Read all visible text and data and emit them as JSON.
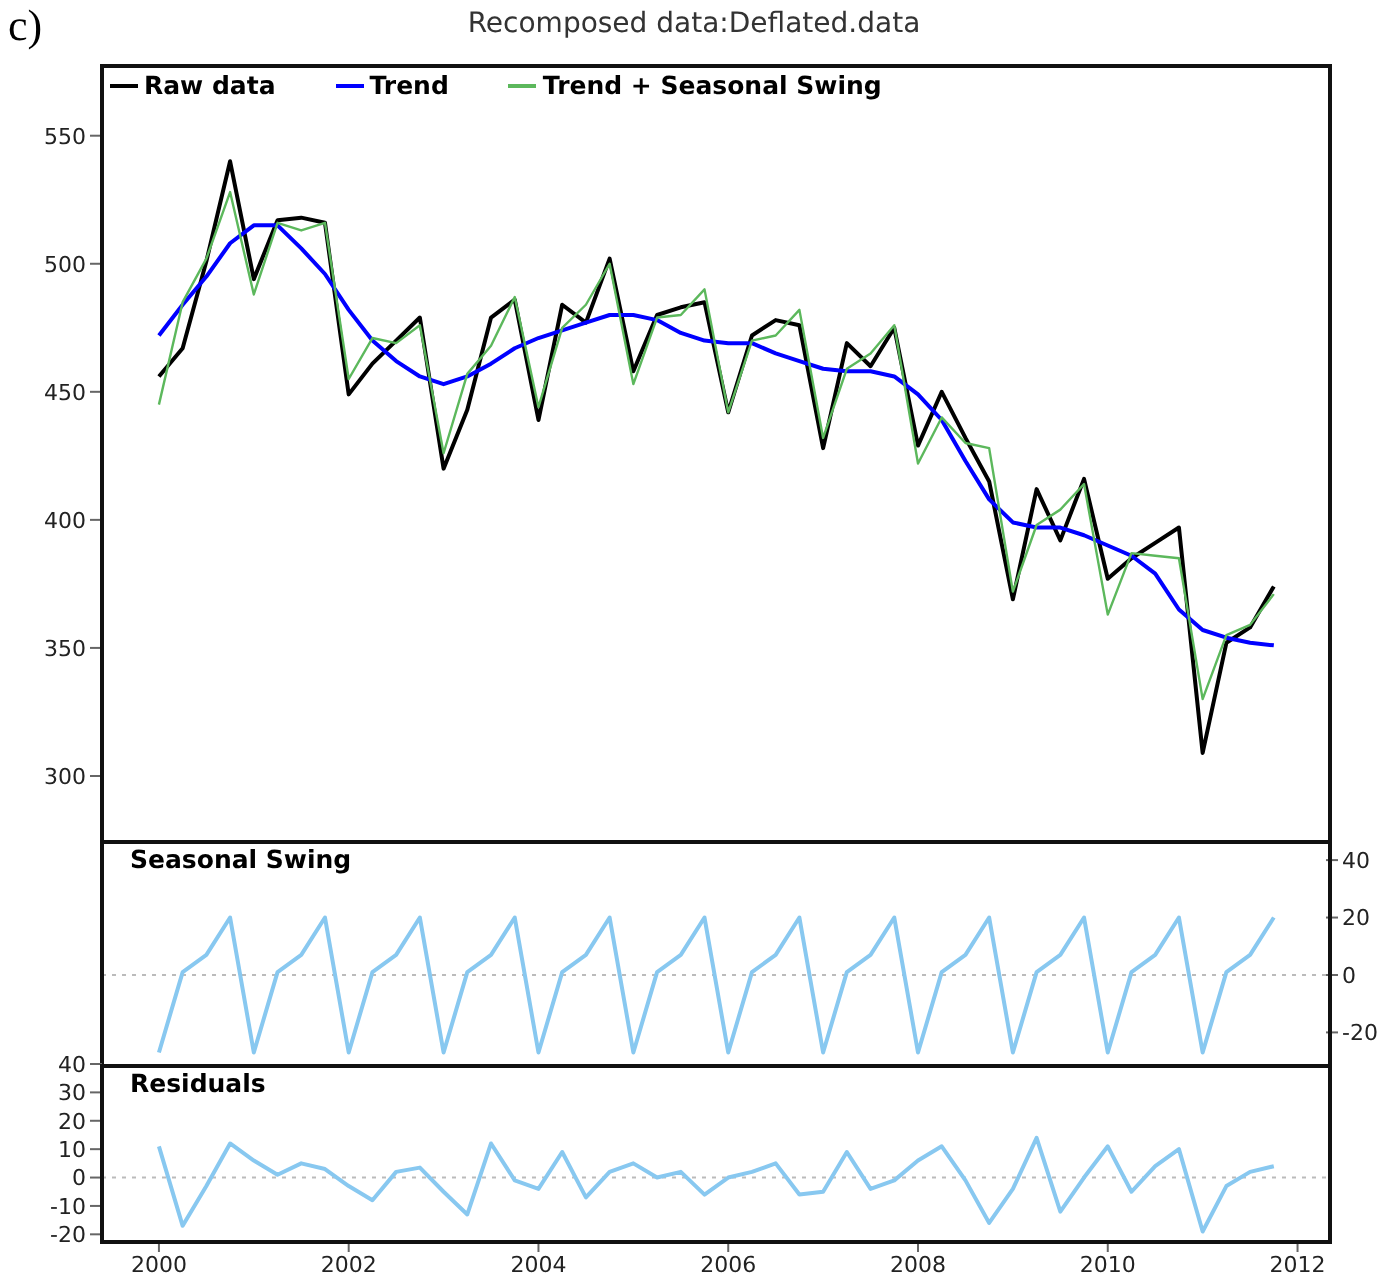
{
  "chart_data": [
    {
      "type": "line",
      "title": "Recomposed data:Deflated.data",
      "annotations": [
        "c)"
      ],
      "legend": "top left",
      "tick_labels": "y",
      "grid": false,
      "x": [
        2000,
        2000.25,
        2000.5,
        2000.75,
        2001,
        2001.25,
        2001.5,
        2001.75,
        2002,
        2002.25,
        2002.5,
        2002.75,
        2003,
        2003.25,
        2003.5,
        2003.75,
        2004,
        2004.25,
        2004.5,
        2004.75,
        2005,
        2005.25,
        2005.5,
        2005.75,
        2006,
        2006.25,
        2006.5,
        2006.75,
        2007,
        2007.25,
        2007.5,
        2007.75,
        2008,
        2008.25,
        2008.5,
        2008.75,
        2009,
        2009.25,
        2009.5,
        2009.75,
        2010,
        2010.25,
        2010.5,
        2010.75,
        2011,
        2011.25,
        2011.5,
        2011.75
      ],
      "xlim": [
        1999.4,
        2012.3
      ],
      "ylim": [
        275,
        578
      ],
      "yticks": [
        300,
        350,
        400,
        450,
        500,
        550
      ],
      "series": [
        {
          "name": "Raw data",
          "color": "#000000",
          "values": [
            456,
            467,
            501,
            540,
            494,
            517,
            518,
            516,
            449,
            461,
            470,
            479,
            420,
            443,
            479,
            486,
            439,
            484,
            477,
            502,
            458,
            480,
            483,
            485,
            442,
            472,
            478,
            476,
            428,
            469,
            460,
            475,
            429,
            450,
            432,
            415,
            369,
            412,
            392,
            416,
            377,
            385,
            391,
            397,
            309,
            352,
            358,
            374
          ]
        },
        {
          "name": "Trend",
          "color": "#0000ff",
          "values": [
            472,
            484,
            495,
            508,
            515,
            515,
            506,
            496,
            482,
            470,
            462,
            456,
            453,
            456,
            461,
            467,
            471,
            474,
            477,
            480,
            480,
            478,
            473,
            470,
            469,
            469,
            465,
            462,
            459,
            458,
            458,
            456,
            449,
            439,
            423,
            408,
            399,
            397,
            397,
            394,
            390,
            386,
            379,
            365,
            357,
            354,
            352,
            351
          ]
        },
        {
          "name": "Trend + Seasonal Swing",
          "color": "#5cb85c",
          "values": [
            445,
            485,
            502,
            528,
            488,
            516,
            513,
            516,
            455,
            471,
            469,
            476,
            426,
            457,
            468,
            487,
            444,
            475,
            484,
            500,
            453,
            479,
            480,
            490,
            442,
            470,
            472,
            482,
            432,
            459,
            465,
            476,
            422,
            440,
            430,
            428,
            372,
            398,
            404,
            414,
            363,
            387,
            386,
            385,
            330,
            355,
            359,
            371
          ]
        }
      ]
    },
    {
      "type": "line",
      "title": "Seasonal Swing",
      "tick_labels": "y",
      "grid": false,
      "x": [
        2000,
        2000.25,
        2000.5,
        2000.75,
        2001,
        2001.25,
        2001.5,
        2001.75,
        2002,
        2002.25,
        2002.5,
        2002.75,
        2003,
        2003.25,
        2003.5,
        2003.75,
        2004,
        2004.25,
        2004.5,
        2004.75,
        2005,
        2005.25,
        2005.5,
        2005.75,
        2006,
        2006.25,
        2006.5,
        2006.75,
        2007,
        2007.25,
        2007.5,
        2007.75,
        2008,
        2008.25,
        2008.5,
        2008.75,
        2009,
        2009.25,
        2009.5,
        2009.75,
        2010,
        2010.25,
        2010.5,
        2010.75,
        2011,
        2011.25,
        2011.5,
        2011.75
      ],
      "xlim": [
        1999.4,
        2012.3
      ],
      "y2lim": [
        -31,
        47
      ],
      "y2ticks": [
        -20,
        0,
        20,
        40
      ],
      "ref_lines": [
        {
          "axis": "y2",
          "value": 0,
          "color": "#bbbbbb",
          "line_style": "dotted"
        }
      ],
      "series": [
        {
          "color": "#88c8f0",
          "axis": "y2",
          "values": [
            -27,
            1,
            7,
            20,
            -27,
            1,
            7,
            20,
            -27,
            1,
            7,
            20,
            -27,
            1,
            7,
            20,
            -27,
            1,
            7,
            20,
            -27,
            1,
            7,
            20,
            -27,
            1,
            7,
            20,
            -27,
            1,
            7,
            20,
            -27,
            1,
            7,
            20,
            -27,
            1,
            7,
            20,
            -27,
            1,
            7,
            20,
            -27,
            1,
            7,
            20
          ]
        }
      ]
    },
    {
      "type": "line",
      "title": "Residuals",
      "grid": false,
      "x": [
        2000,
        2000.25,
        2000.5,
        2000.75,
        2001,
        2001.25,
        2001.5,
        2001.75,
        2002,
        2002.25,
        2002.5,
        2002.75,
        2003,
        2003.25,
        2003.5,
        2003.75,
        2004,
        2004.25,
        2004.5,
        2004.75,
        2005,
        2005.25,
        2005.5,
        2005.75,
        2006,
        2006.25,
        2006.5,
        2006.75,
        2007,
        2007.25,
        2007.5,
        2007.75,
        2008,
        2008.25,
        2008.5,
        2008.75,
        2009,
        2009.25,
        2009.5,
        2009.75,
        2010,
        2010.25,
        2010.5,
        2010.75,
        2011,
        2011.25,
        2011.5,
        2011.75
      ],
      "xlim": [
        1999.4,
        2012.3
      ],
      "xticks": [
        2000,
        2002,
        2004,
        2006,
        2008,
        2010,
        2012
      ],
      "ylim": [
        -22,
        40
      ],
      "yticks": [
        -20,
        -10,
        0,
        10,
        20,
        30,
        40
      ],
      "ref_lines": [
        {
          "axis": "y",
          "value": 0,
          "color": "#bbbbbb",
          "line_style": "dotted"
        }
      ],
      "series": [
        {
          "color": "#88c8f0",
          "values": [
            11,
            -17,
            -3,
            12,
            6,
            1,
            5,
            3,
            -3,
            -8,
            2,
            3.5,
            -5,
            -13,
            12,
            -1,
            -4,
            9,
            -7,
            2,
            5,
            0,
            2,
            -6,
            0,
            2,
            5,
            -6,
            -5,
            9,
            -4,
            -1,
            6,
            11,
            -1,
            -16,
            -4,
            14,
            -12,
            0,
            11,
            -5,
            4,
            10,
            -19,
            -3,
            2,
            4
          ]
        }
      ]
    }
  ]
}
